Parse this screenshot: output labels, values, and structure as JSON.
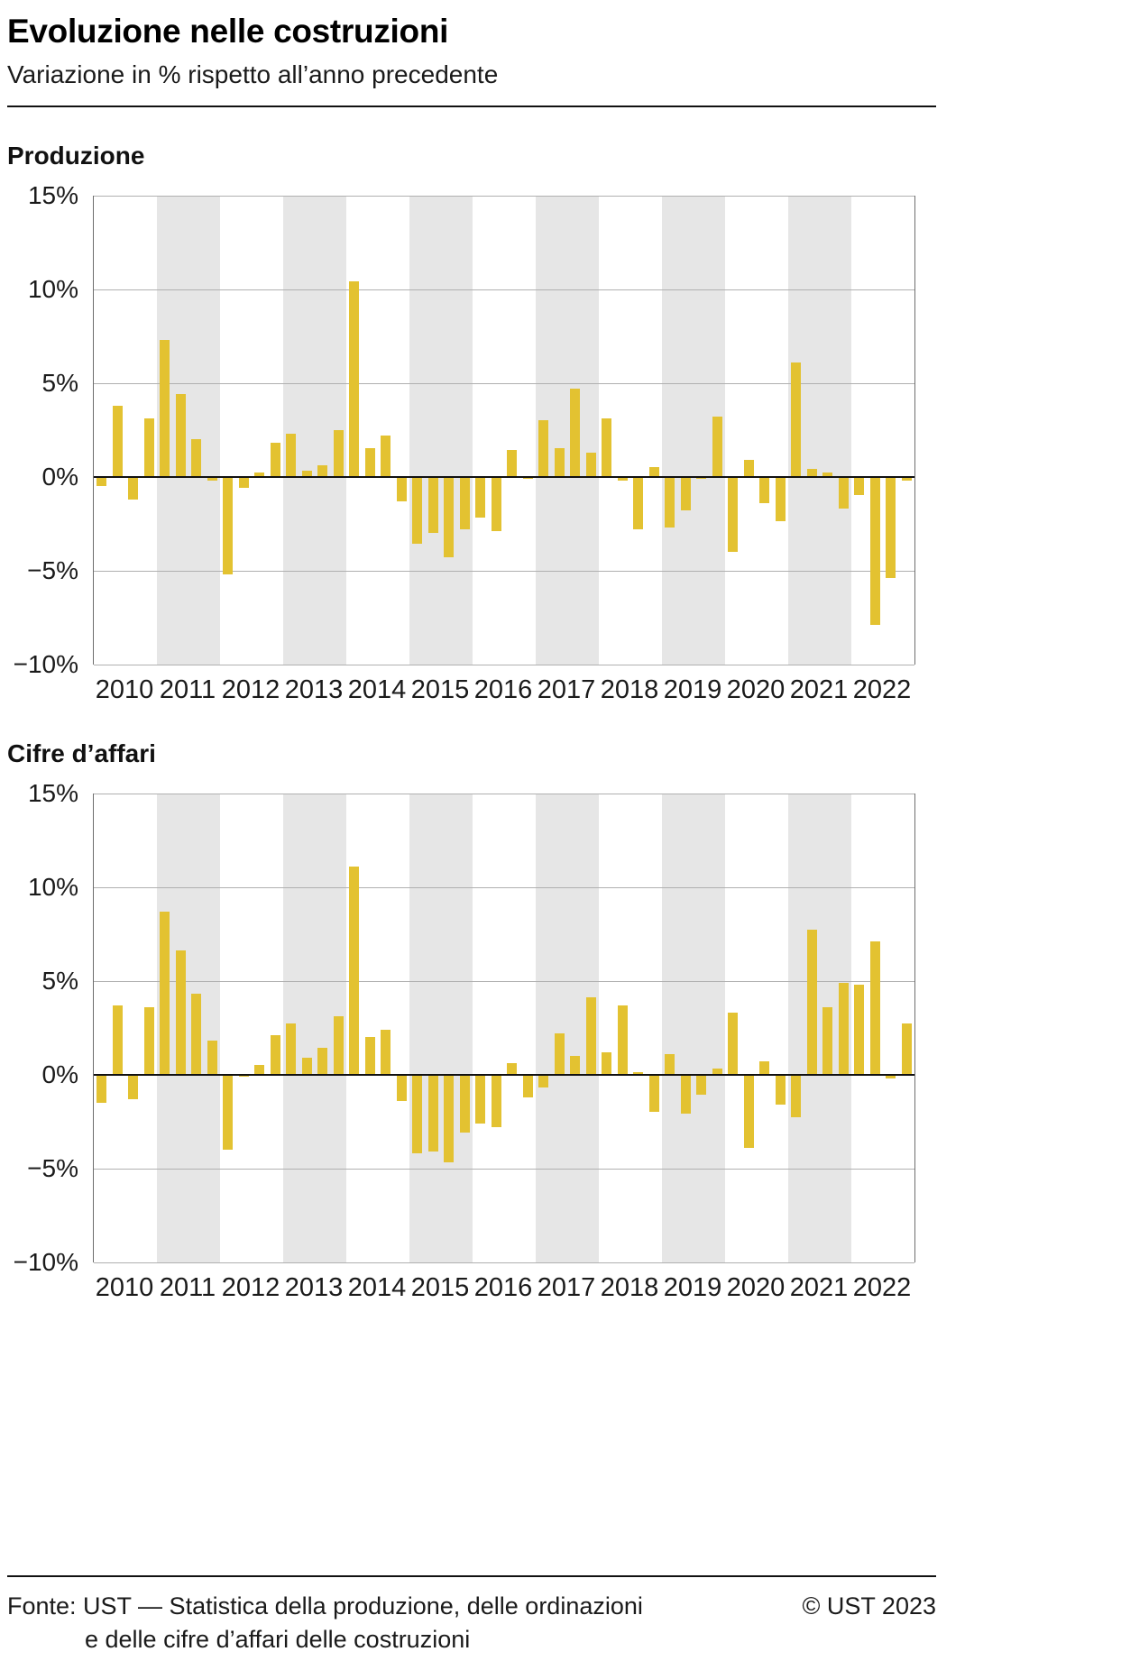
{
  "header": {
    "title": "Evoluzione nelle costruzioni",
    "subtitle": "Variazione in % rispetto all’anno precedente"
  },
  "footer": {
    "source_line1": "Fonte: UST — Statistica della produzione, delle ordinazioni",
    "source_line2": "e delle cifre d’affari delle costruzioni",
    "copyright": "© UST 2023"
  },
  "colors": {
    "bar": "#e3c231",
    "band": "#e6e6e6",
    "grid": "#b0b0b0",
    "zero_line": "#111111",
    "axis": "#6e6e6e"
  },
  "chart_data": [
    {
      "type": "bar",
      "title": "Produzione",
      "xlabel": "",
      "ylabel": "",
      "ylim": [
        -10,
        15
      ],
      "grid": true,
      "legend": false,
      "yticks": [
        15,
        10,
        5,
        0,
        -5,
        -10
      ],
      "ytick_labels": [
        "15%",
        "10%",
        "5%",
        "0%",
        "−5%",
        "−10%"
      ],
      "years": [
        2010,
        2011,
        2012,
        2013,
        2014,
        2015,
        2016,
        2017,
        2018,
        2019,
        2020,
        2021,
        2022
      ],
      "shaded_years": [
        2011,
        2013,
        2015,
        2017,
        2019,
        2021
      ],
      "values_per_year": 4,
      "values": [
        -0.5,
        3.8,
        -1.2,
        3.1,
        7.3,
        4.4,
        2.0,
        -0.2,
        -5.2,
        -0.6,
        0.2,
        1.8,
        2.3,
        0.3,
        0.6,
        2.5,
        10.4,
        1.5,
        2.2,
        -1.3,
        -3.6,
        -3.0,
        -4.3,
        -2.8,
        -2.2,
        -2.9,
        1.4,
        -0.1,
        3.0,
        1.5,
        4.7,
        1.3,
        3.1,
        -0.2,
        -2.8,
        0.5,
        -2.7,
        -1.8,
        -0.1,
        3.2,
        -4.0,
        0.9,
        -1.4,
        -2.4,
        6.1,
        0.4,
        0.2,
        -1.7,
        -1.0,
        -7.9,
        -5.4,
        -0.2
      ]
    },
    {
      "type": "bar",
      "title": "Cifre d’affari",
      "xlabel": "",
      "ylabel": "",
      "ylim": [
        -10,
        15
      ],
      "grid": true,
      "legend": false,
      "yticks": [
        15,
        10,
        5,
        0,
        -5,
        -10
      ],
      "ytick_labels": [
        "15%",
        "10%",
        "5%",
        "0%",
        "−5%",
        "−10%"
      ],
      "years": [
        2010,
        2011,
        2012,
        2013,
        2014,
        2015,
        2016,
        2017,
        2018,
        2019,
        2020,
        2021,
        2022
      ],
      "shaded_years": [
        2011,
        2013,
        2015,
        2017,
        2019,
        2021
      ],
      "values_per_year": 4,
      "values": [
        -1.5,
        3.7,
        -1.3,
        3.6,
        8.7,
        6.6,
        4.3,
        1.8,
        -4.0,
        -0.1,
        0.5,
        2.1,
        2.7,
        0.9,
        1.4,
        3.1,
        11.1,
        2.0,
        2.4,
        -1.4,
        -4.2,
        -4.1,
        -4.7,
        -3.1,
        -2.6,
        -2.8,
        0.6,
        -1.2,
        -0.7,
        2.2,
        1.0,
        4.1,
        1.2,
        3.7,
        0.1,
        -2.0,
        1.1,
        -2.1,
        -1.1,
        0.3,
        3.3,
        -3.9,
        0.7,
        -1.6,
        -2.3,
        7.7,
        3.6,
        4.9,
        4.8,
        7.1,
        -0.2,
        2.7
      ]
    }
  ]
}
